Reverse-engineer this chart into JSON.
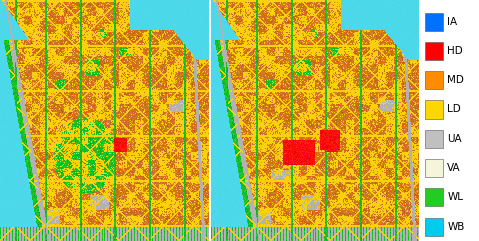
{
  "legend_entries": [
    {
      "label": "IA",
      "color": "#0070FF"
    },
    {
      "label": "HD",
      "color": "#FF0000"
    },
    {
      "label": "MD",
      "color": "#FF8C00"
    },
    {
      "label": "LD",
      "color": "#FFD700"
    },
    {
      "label": "UA",
      "color": "#C0C0C0"
    },
    {
      "label": "VA",
      "color": "#F5F5DC"
    },
    {
      "label": "WL",
      "color": "#22CC22"
    },
    {
      "label": "WB",
      "color": "#00CCEE"
    }
  ],
  "fig_width": 4.79,
  "fig_height": 2.41,
  "dpi": 100,
  "background_color": "#ffffff",
  "legend_fontsize": 7.5
}
